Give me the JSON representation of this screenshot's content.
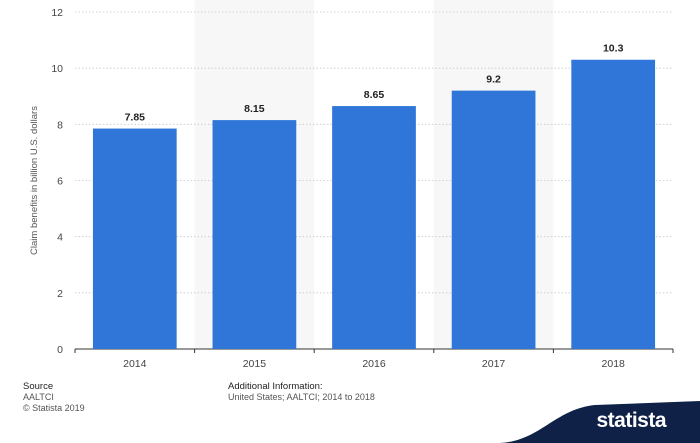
{
  "chart_data": {
    "type": "bar",
    "categories": [
      "2014",
      "2015",
      "2016",
      "2017",
      "2018"
    ],
    "values": [
      7.85,
      8.15,
      8.65,
      9.2,
      10.3
    ],
    "value_labels": [
      "7.85",
      "8.15",
      "8.65",
      "9.2",
      "10.3"
    ],
    "ylabel": "Claim benefits in billion U.S. dollars",
    "ylim": [
      0,
      12
    ],
    "yticks": [
      0,
      2,
      4,
      6,
      8,
      10,
      12
    ],
    "grid": true,
    "bar_color": "#2f76d8"
  },
  "footer": {
    "source_heading": "Source",
    "source_lines": [
      "AALTCI",
      "© Statista 2019"
    ],
    "info_heading": "Additional Information:",
    "info_text": "United States; AALTCI; 2014 to 2018"
  },
  "brand": {
    "name": "statista",
    "bg_color": "#0f2147"
  }
}
